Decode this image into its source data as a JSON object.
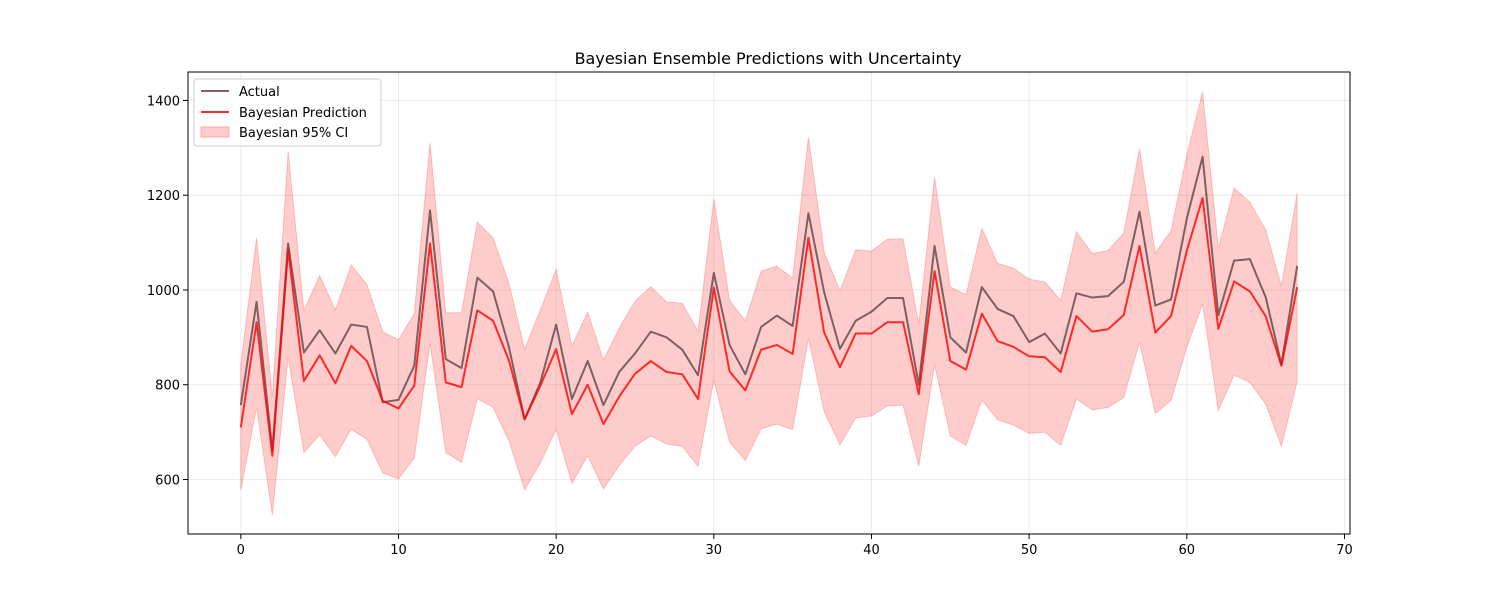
{
  "chart_data": {
    "type": "line",
    "title": "Bayesian Ensemble Predictions with Uncertainty",
    "xlabel": "",
    "ylabel": "",
    "xlim": [
      -3.35,
      70.35
    ],
    "ylim": [
      485,
      1460
    ],
    "xticks": [
      0,
      10,
      20,
      30,
      40,
      50,
      60,
      70
    ],
    "yticks": [
      600,
      800,
      1000,
      1200,
      1400
    ],
    "grid": true,
    "legend_position": "top-left",
    "x": [
      0,
      1,
      2,
      3,
      4,
      5,
      6,
      7,
      8,
      9,
      10,
      11,
      12,
      13,
      14,
      15,
      16,
      17,
      18,
      19,
      20,
      21,
      22,
      23,
      24,
      25,
      26,
      27,
      28,
      29,
      30,
      31,
      32,
      33,
      34,
      35,
      36,
      37,
      38,
      39,
      40,
      41,
      42,
      43,
      44,
      45,
      46,
      47,
      48,
      49,
      50,
      51,
      52,
      53,
      54,
      55,
      56,
      57,
      58,
      59,
      60,
      61,
      62,
      63,
      64,
      65,
      66,
      67
    ],
    "series": [
      {
        "name": "Actual",
        "color": "#7a6468",
        "values": [
          757,
          975,
          662,
          1098,
          868,
          915,
          866,
          927,
          922,
          763,
          768,
          840,
          1168,
          854,
          835,
          1026,
          997,
          880,
          727,
          805,
          927,
          770,
          850,
          757,
          827,
          866,
          912,
          900,
          874,
          820,
          1036,
          884,
          822,
          922,
          946,
          924,
          1162,
          995,
          876,
          935,
          954,
          983,
          983,
          800,
          1093,
          900,
          868,
          1006,
          960,
          945,
          890,
          908,
          866,
          993,
          984,
          987,
          1017,
          1165,
          967,
          980,
          1151,
          1281,
          947,
          1062,
          1065,
          985,
          843,
          1051
        ]
      },
      {
        "name": "Bayesian Prediction",
        "color": "#f03030",
        "values": [
          710,
          932,
          650,
          1085,
          808,
          862,
          803,
          882,
          850,
          766,
          750,
          798,
          1098,
          805,
          795,
          957,
          935,
          852,
          727,
          798,
          875,
          738,
          800,
          717,
          775,
          823,
          850,
          827,
          822,
          770,
          1005,
          828,
          788,
          874,
          884,
          865,
          1110,
          910,
          837,
          908,
          908,
          932,
          932,
          780,
          1040,
          850,
          832,
          950,
          892,
          880,
          860,
          858,
          827,
          945,
          912,
          917,
          947,
          1093,
          910,
          945,
          1083,
          1194,
          918,
          1018,
          997,
          945,
          840,
          1006
        ]
      },
      {
        "name": "Bayesian 95% CI",
        "color": "#ffcccc",
        "lower": [
          578,
          752,
          525,
          858,
          657,
          694,
          648,
          706,
          685,
          614,
          601,
          645,
          888,
          657,
          636,
          771,
          752,
          682,
          578,
          635,
          706,
          592,
          650,
          580,
          630,
          670,
          692,
          675,
          670,
          628,
          810,
          679,
          640,
          707,
          717,
          705,
          898,
          743,
          673,
          730,
          734,
          755,
          757,
          628,
          843,
          692,
          672,
          768,
          726,
          715,
          697,
          700,
          672,
          770,
          747,
          752,
          773,
          890,
          739,
          767,
          879,
          970,
          746,
          820,
          805,
          759,
          670,
          807
        ],
        "upper": [
          843,
          1110,
          775,
          1293,
          957,
          1030,
          958,
          1053,
          1011,
          912,
          895,
          950,
          1310,
          952,
          952,
          1143,
          1110,
          1015,
          875,
          958,
          1043,
          882,
          953,
          852,
          920,
          976,
          1007,
          975,
          972,
          913,
          1192,
          978,
          935,
          1040,
          1050,
          1025,
          1323,
          1080,
          998,
          1085,
          1082,
          1107,
          1108,
          928,
          1238,
          1006,
          990,
          1130,
          1056,
          1046,
          1023,
          1017,
          978,
          1123,
          1077,
          1083,
          1120,
          1298,
          1078,
          1125,
          1285,
          1418,
          1088,
          1215,
          1185,
          1127,
          1008,
          1205
        ]
      }
    ]
  }
}
